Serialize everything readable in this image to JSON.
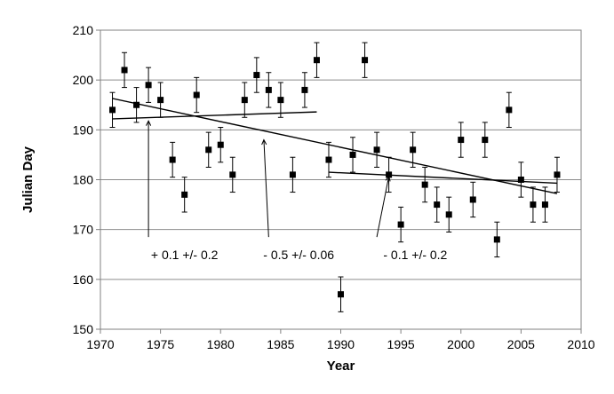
{
  "chart_data": {
    "type": "scatter",
    "title": "",
    "xlabel": "Year",
    "ylabel": "Julian Day",
    "xlim": [
      1970,
      2010
    ],
    "ylim": [
      150,
      210
    ],
    "xticks": [
      1970,
      1975,
      1980,
      1985,
      1990,
      1995,
      2000,
      2005,
      2010
    ],
    "yticks": [
      150,
      160,
      170,
      180,
      190,
      200,
      210
    ],
    "grid": "horizontal",
    "legend": "none",
    "marker_color": "#000000",
    "series": [
      {
        "points": [
          {
            "x": 1971,
            "y": 194,
            "err": 3.5
          },
          {
            "x": 1972,
            "y": 202,
            "err": 3.5
          },
          {
            "x": 1973,
            "y": 195,
            "err": 3.5
          },
          {
            "x": 1974,
            "y": 199,
            "err": 3.5
          },
          {
            "x": 1975,
            "y": 196,
            "err": 3.5
          },
          {
            "x": 1976,
            "y": 184,
            "err": 3.5
          },
          {
            "x": 1977,
            "y": 177,
            "err": 3.5
          },
          {
            "x": 1978,
            "y": 197,
            "err": 3.5
          },
          {
            "x": 1979,
            "y": 186,
            "err": 3.5
          },
          {
            "x": 1980,
            "y": 187,
            "err": 3.5
          },
          {
            "x": 1981,
            "y": 181,
            "err": 3.5
          },
          {
            "x": 1982,
            "y": 196,
            "err": 3.5
          },
          {
            "x": 1983,
            "y": 201,
            "err": 3.5
          },
          {
            "x": 1984,
            "y": 198,
            "err": 3.5
          },
          {
            "x": 1985,
            "y": 196,
            "err": 3.5
          },
          {
            "x": 1986,
            "y": 181,
            "err": 3.5
          },
          {
            "x": 1987,
            "y": 198,
            "err": 3.5
          },
          {
            "x": 1988,
            "y": 204,
            "err": 3.5
          },
          {
            "x": 1989,
            "y": 184,
            "err": 3.5
          },
          {
            "x": 1990,
            "y": 157,
            "err": 3.5
          },
          {
            "x": 1991,
            "y": 185,
            "err": 3.5
          },
          {
            "x": 1992,
            "y": 204,
            "err": 3.5
          },
          {
            "x": 1993,
            "y": 186,
            "err": 3.5
          },
          {
            "x": 1994,
            "y": 181,
            "err": 3.5
          },
          {
            "x": 1995,
            "y": 171,
            "err": 3.5
          },
          {
            "x": 1996,
            "y": 186,
            "err": 3.5
          },
          {
            "x": 1997,
            "y": 179,
            "err": 3.5
          },
          {
            "x": 1998,
            "y": 175,
            "err": 3.5
          },
          {
            "x": 1999,
            "y": 173,
            "err": 3.5
          },
          {
            "x": 2000,
            "y": 188,
            "err": 3.5
          },
          {
            "x": 2001,
            "y": 176,
            "err": 3.5
          },
          {
            "x": 2002,
            "y": 188,
            "err": 3.5
          },
          {
            "x": 2003,
            "y": 168,
            "err": 3.5
          },
          {
            "x": 2004,
            "y": 194,
            "err": 3.5
          },
          {
            "x": 2005,
            "y": 180,
            "err": 3.5
          },
          {
            "x": 2006,
            "y": 175,
            "err": 3.5
          },
          {
            "x": 2007,
            "y": 175,
            "err": 3.5
          },
          {
            "x": 2008,
            "y": 181,
            "err": 3.5
          }
        ]
      }
    ],
    "trend_lines": [
      {
        "x1": 1971,
        "y1": 192.2,
        "x2": 1988,
        "y2": 193.6
      },
      {
        "x1": 1971,
        "y1": 196.3,
        "x2": 2008,
        "y2": 177.2
      },
      {
        "x1": 1989,
        "y1": 181.5,
        "x2": 2008,
        "y2": 179.3
      }
    ],
    "annotations": [
      {
        "text": "+ 0.1 +/- 0.2",
        "arrow_from": [
          1974,
          168.5
        ],
        "arrow_to": [
          1974,
          191.8
        ],
        "text_pos": [
          1977,
          165
        ]
      },
      {
        "text": "- 0.5 +/- 0.06",
        "arrow_from": [
          1984,
          168.5
        ],
        "arrow_to": [
          1983.6,
          188
        ],
        "text_pos": [
          1986.5,
          165
        ]
      },
      {
        "text": "- 0.1 +/- 0.2",
        "arrow_from": [
          1993,
          168.5
        ],
        "arrow_to": [
          1994,
          180.7
        ],
        "text_pos": [
          1996.2,
          165
        ]
      }
    ]
  }
}
